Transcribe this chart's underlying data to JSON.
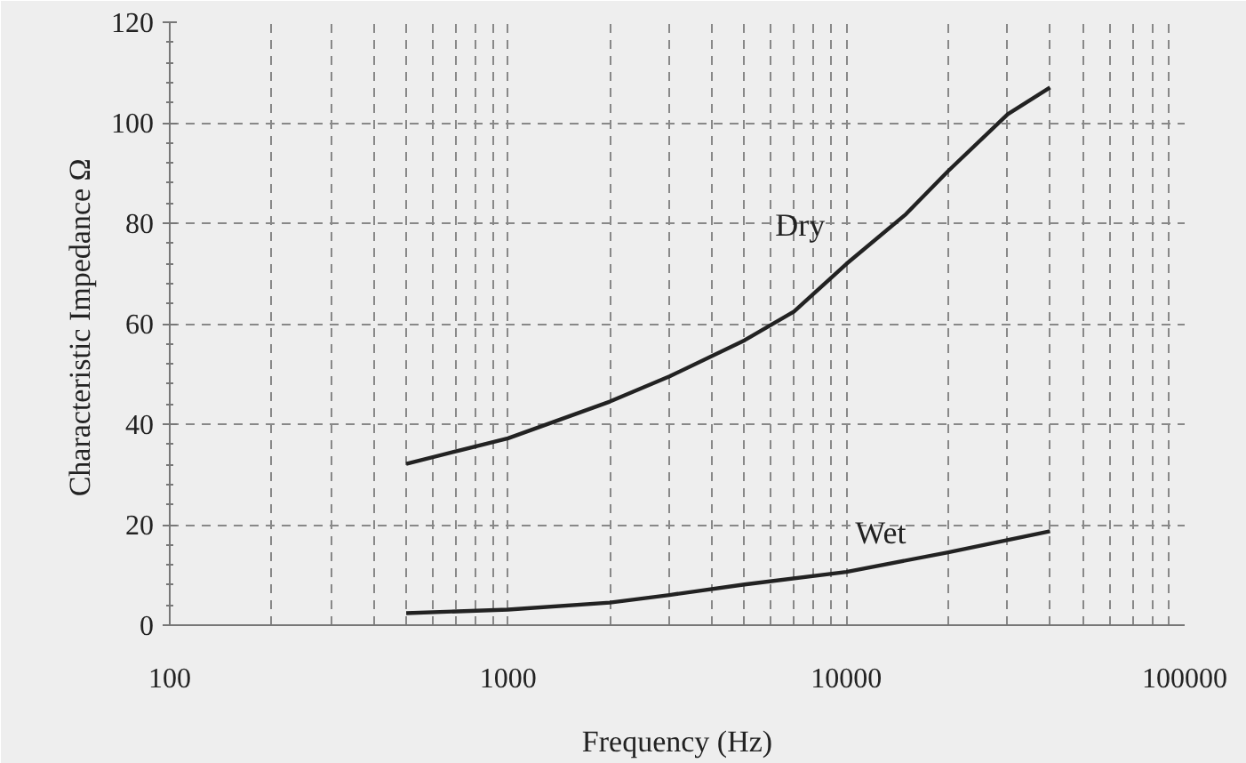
{
  "chart_data": {
    "type": "line",
    "xlabel": "Frequency (Hz)",
    "ylabel": "Characteristic Impedance  Ω",
    "log": "x",
    "grid": true,
    "line_style": "solid",
    "marker": "none",
    "xlim": [
      100,
      100000
    ],
    "xticks": [
      100,
      1000,
      10000,
      100000
    ],
    "ylim": [
      0,
      120
    ],
    "yticks": [
      0,
      20,
      40,
      60,
      80,
      100,
      120
    ],
    "series": [
      {
        "name": "Dry",
        "color": "#222222",
        "x": [
          500,
          1000,
          2000,
          3000,
          5000,
          7000,
          10000,
          15000,
          20000,
          30000,
          40000
        ],
        "values": [
          32.1,
          37.2,
          44.5,
          49.5,
          56.7,
          62.4,
          71.9,
          81.8,
          90.4,
          101.7,
          107
        ]
      },
      {
        "name": "Wet",
        "color": "#222222",
        "x": [
          500,
          1000,
          2000,
          3000,
          5000,
          10000,
          20000,
          40000
        ],
        "values": [
          2.4,
          3.1,
          4.5,
          6,
          8.1,
          10.6,
          14.5,
          18.7
        ]
      }
    ]
  }
}
